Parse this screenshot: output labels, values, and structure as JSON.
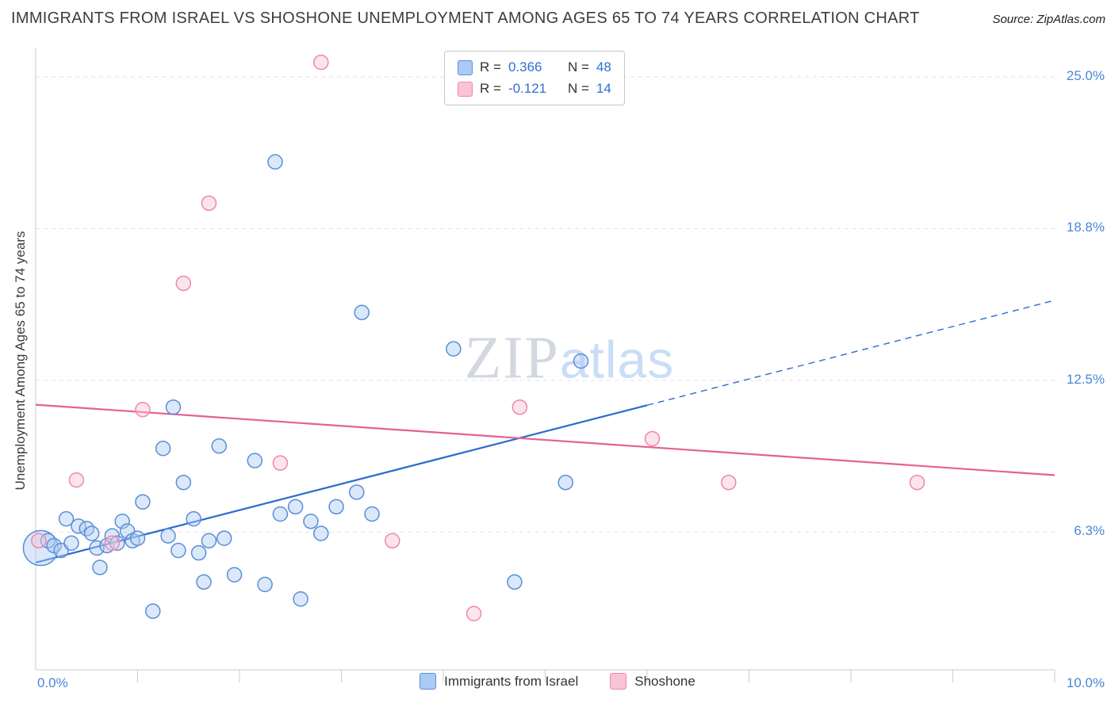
{
  "header": {
    "title": "IMMIGRANTS FROM ISRAEL VS SHOSHONE UNEMPLOYMENT AMONG AGES 65 TO 74 YEARS CORRELATION CHART",
    "source": "Source: ZipAtlas.com"
  },
  "watermark": {
    "zip": "ZIP",
    "atlas": "atlas"
  },
  "stats_box": {
    "rows": [
      {
        "swatch": "blue",
        "r_label": "R =",
        "r_value": "0.366",
        "n_label": "N =",
        "n_value": "48"
      },
      {
        "swatch": "pink",
        "r_label": "R =",
        "r_value": "-0.121",
        "n_label": "N =",
        "n_value": "14"
      }
    ]
  },
  "chart_data": {
    "type": "scatter",
    "title": "IMMIGRANTS FROM ISRAEL VS SHOSHONE UNEMPLOYMENT AMONG AGES 65 TO 74 YEARS CORRELATION CHART",
    "ylabel": "Unemployment Among Ages 65 to 74 years",
    "xlim": [
      0,
      10
    ],
    "ylim": [
      0,
      26.2
    ],
    "x_axis_labels": {
      "left": "0.0%",
      "right": "10.0%"
    },
    "y_gridlines": [
      {
        "value": 6.25,
        "label": "6.3%"
      },
      {
        "value": 12.5,
        "label": "12.5%"
      },
      {
        "value": 18.75,
        "label": "18.8%"
      },
      {
        "value": 25.0,
        "label": "25.0%"
      }
    ],
    "legend_position": "bottom-center",
    "grid": true,
    "series": [
      {
        "name": "Immigrants from Israel",
        "slug": "israel",
        "R": 0.366,
        "N": 48,
        "color": "#5b8ed6",
        "fill": "#aecbf5",
        "points": [
          [
            0.05,
            5.6,
            22
          ],
          [
            0.12,
            5.9,
            9
          ],
          [
            0.18,
            5.7,
            9
          ],
          [
            0.25,
            5.5,
            9
          ],
          [
            0.3,
            6.8,
            9
          ],
          [
            0.35,
            5.8,
            9
          ],
          [
            0.42,
            6.5,
            9
          ],
          [
            0.5,
            6.4,
            9
          ],
          [
            0.55,
            6.2,
            9
          ],
          [
            0.6,
            5.6,
            9
          ],
          [
            0.63,
            4.8,
            9
          ],
          [
            0.7,
            5.7,
            9
          ],
          [
            0.75,
            6.1,
            9
          ],
          [
            0.8,
            5.8,
            9
          ],
          [
            0.85,
            6.7,
            9
          ],
          [
            0.9,
            6.3,
            9
          ],
          [
            0.95,
            5.9,
            9
          ],
          [
            1.0,
            6.0,
            9
          ],
          [
            1.05,
            7.5,
            9
          ],
          [
            1.15,
            3.0,
            9
          ],
          [
            1.25,
            9.7,
            9
          ],
          [
            1.3,
            6.1,
            9
          ],
          [
            1.35,
            11.4,
            9
          ],
          [
            1.4,
            5.5,
            9
          ],
          [
            1.45,
            8.3,
            9
          ],
          [
            1.55,
            6.8,
            9
          ],
          [
            1.6,
            5.4,
            9
          ],
          [
            1.65,
            4.2,
            9
          ],
          [
            1.7,
            5.9,
            9
          ],
          [
            1.8,
            9.8,
            9
          ],
          [
            1.85,
            6.0,
            9
          ],
          [
            1.95,
            4.5,
            9
          ],
          [
            2.15,
            9.2,
            9
          ],
          [
            2.25,
            4.1,
            9
          ],
          [
            2.35,
            21.5,
            9
          ],
          [
            2.4,
            7.0,
            9
          ],
          [
            2.55,
            7.3,
            9
          ],
          [
            2.6,
            3.5,
            9
          ],
          [
            2.7,
            6.7,
            9
          ],
          [
            2.8,
            6.2,
            9
          ],
          [
            2.95,
            7.3,
            9
          ],
          [
            3.15,
            7.9,
            9
          ],
          [
            3.2,
            15.3,
            9
          ],
          [
            3.3,
            7.0,
            9
          ],
          [
            4.1,
            13.8,
            9
          ],
          [
            4.7,
            4.2,
            9
          ],
          [
            5.2,
            8.3,
            9
          ],
          [
            5.35,
            13.3,
            9
          ]
        ]
      },
      {
        "name": "Shoshone",
        "slug": "shoshone",
        "R": -0.121,
        "N": 14,
        "color": "#ef87ab",
        "fill": "#f9c3d6",
        "points": [
          [
            0.03,
            5.9,
            9
          ],
          [
            0.4,
            8.4,
            9
          ],
          [
            0.75,
            5.8,
            9
          ],
          [
            1.05,
            11.3,
            9
          ],
          [
            1.45,
            16.5,
            9
          ],
          [
            1.7,
            19.8,
            9
          ],
          [
            2.4,
            9.1,
            9
          ],
          [
            2.8,
            25.6,
            9
          ],
          [
            3.5,
            5.9,
            9
          ],
          [
            4.3,
            2.9,
            9
          ],
          [
            4.75,
            11.4,
            9
          ],
          [
            6.05,
            10.1,
            9
          ],
          [
            6.8,
            8.3,
            9
          ],
          [
            8.65,
            8.3,
            9
          ]
        ]
      }
    ],
    "trend_lines": [
      {
        "series": "Immigrants from Israel",
        "color": "#2b6bcf",
        "x0": 0,
        "y0": 5.0,
        "x1": 10,
        "y1": 15.8,
        "solid_until": 6.0
      },
      {
        "series": "Shoshone",
        "color": "#e2638f",
        "x0": 0,
        "y0": 11.5,
        "x1": 10,
        "y1": 8.6,
        "solid_until": 10
      }
    ]
  }
}
